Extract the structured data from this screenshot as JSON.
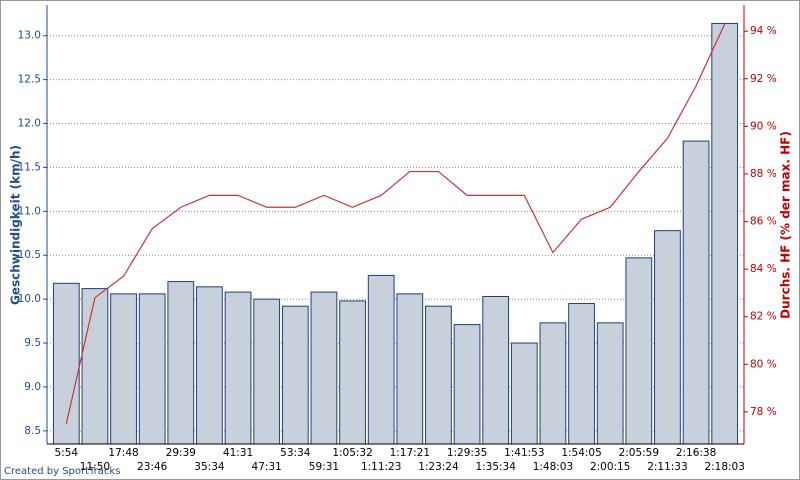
{
  "chart_data": {
    "type": "bar-line",
    "categories": [
      "5:54",
      "11:50",
      "17:48",
      "23:46",
      "29:39",
      "35:34",
      "41:31",
      "47:31",
      "53:34",
      "59:31",
      "1:05:32",
      "1:11:23",
      "1:17:21",
      "1:23:24",
      "1:29:35",
      "1:35:34",
      "1:41:53",
      "1:48:03",
      "1:54:05",
      "2:00:15",
      "2:05:59",
      "2:11:33",
      "2:16:38",
      "2:18:03"
    ],
    "ylabel": "Geschwindigkeit (km/h)",
    "y2label": "Durchs. HF (% der max. HF)",
    "series": [
      {
        "type": "bar",
        "color": "#c8d0dc",
        "values": [
          10.18,
          10.12,
          10.06,
          10.06,
          10.2,
          10.14,
          10.08,
          10.0,
          9.92,
          10.08,
          9.98,
          10.27,
          10.06,
          9.92,
          9.71,
          10.03,
          9.5,
          9.73,
          9.95,
          9.73,
          10.47,
          10.78,
          11.8,
          13.14
        ]
      },
      {
        "type": "line",
        "axis": "y2",
        "color": "#cc3333",
        "values": [
          77.5,
          82.8,
          83.7,
          85.7,
          86.6,
          87.1,
          87.1,
          86.6,
          86.6,
          87.1,
          86.6,
          87.1,
          88.1,
          88.1,
          87.1,
          87.1,
          87.1,
          84.7,
          86.1,
          86.6,
          88.1,
          89.5,
          91.7,
          94.3
        ]
      }
    ],
    "ylim": [
      8.35,
      13.35
    ],
    "yticks": [
      8.5,
      {
        "value": 9,
        "label": "9.0"
      },
      9.5,
      {
        "value": 10,
        "label": "10.0"
      },
      10.5,
      {
        "value": 11,
        "label": "11.0"
      },
      11.5,
      {
        "value": 12,
        "label": "12.0"
      },
      12.5,
      {
        "value": 13,
        "label": "13.0"
      }
    ],
    "y2lim": [
      76.65,
      95.1
    ],
    "y2ticks": [
      {
        "value": 78,
        "label": "78 %"
      },
      {
        "value": 80,
        "label": "80 %"
      },
      {
        "value": 82,
        "label": "82 %"
      },
      {
        "value": 84,
        "label": "84 %"
      },
      {
        "value": 86,
        "label": "86 %"
      },
      {
        "value": 88,
        "label": "88 %"
      },
      {
        "value": 90,
        "label": "90 %"
      },
      {
        "value": 92,
        "label": "92 %"
      },
      {
        "value": 94,
        "label": "94 %"
      }
    ],
    "grid": true
  },
  "credit": "Created by SportTracks"
}
